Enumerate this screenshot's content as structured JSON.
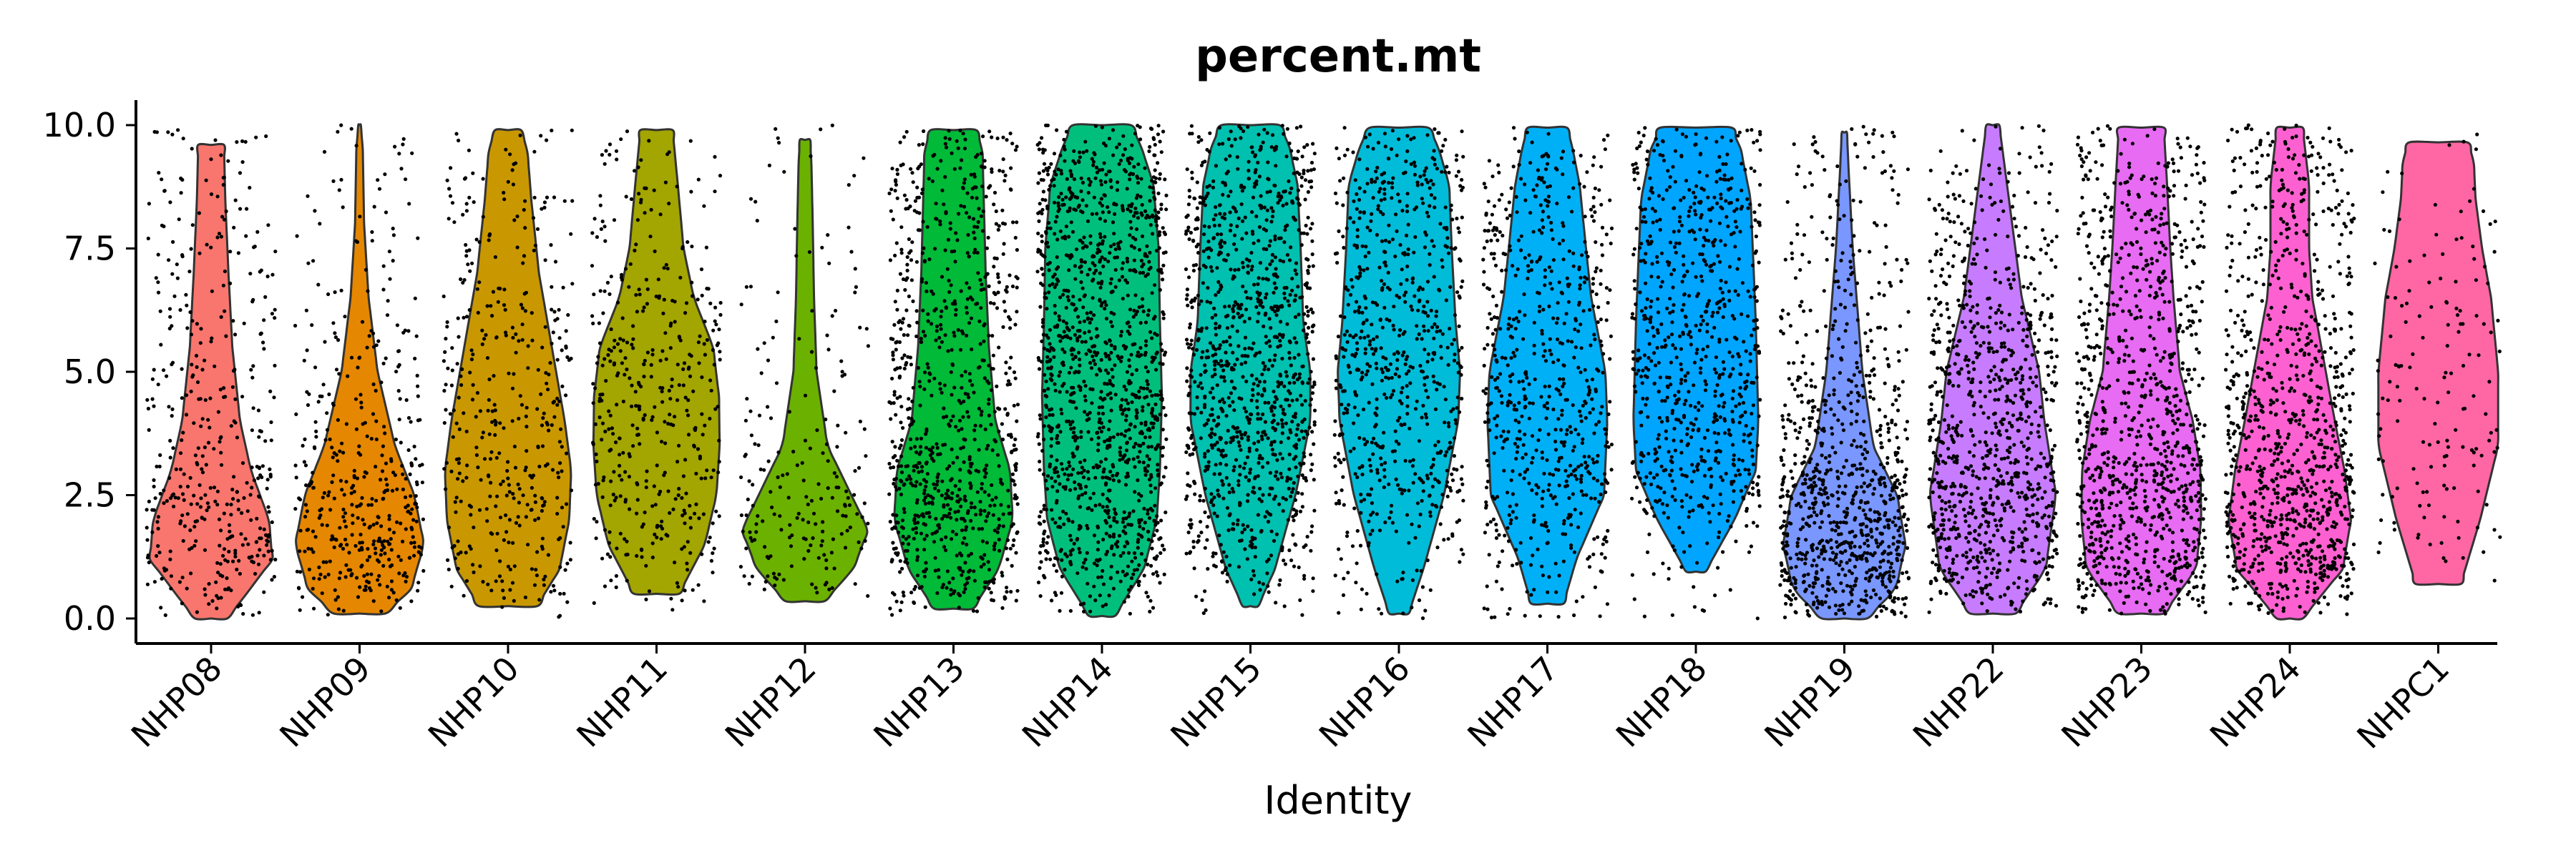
{
  "chart_data": {
    "type": "violin",
    "title": "percent.mt",
    "xlabel": "Identity",
    "ylabel": "",
    "ylim": [
      0,
      10
    ],
    "yticks": [
      "0.0",
      "2.5",
      "5.0",
      "7.5",
      "10.0"
    ],
    "ytick_values": [
      0,
      2.5,
      5,
      7.5,
      10
    ],
    "jitter_points": true,
    "grid": false,
    "legend": "none",
    "categories": [
      "NHP08",
      "NHP09",
      "NHP10",
      "NHP11",
      "NHP12",
      "NHP13",
      "NHP14",
      "NHP15",
      "NHP16",
      "NHP17",
      "NHP18",
      "NHP19",
      "NHP22",
      "NHP23",
      "NHP24",
      "NHPC1"
    ],
    "series": [
      {
        "category": "NHP08",
        "color": "#F8766D",
        "min": 0.0,
        "max": 9.6,
        "n_points": 420,
        "density": [
          [
            0.0,
            0.25
          ],
          [
            0.5,
            0.55
          ],
          [
            1.2,
            0.95
          ],
          [
            2.0,
            0.9
          ],
          [
            3.0,
            0.62
          ],
          [
            4.0,
            0.45
          ],
          [
            5.5,
            0.33
          ],
          [
            7.0,
            0.27
          ],
          [
            8.5,
            0.22
          ],
          [
            9.6,
            0.2
          ]
        ]
      },
      {
        "category": "NHP09",
        "color": "#E58700",
        "min": 0.1,
        "max": 10.0,
        "n_points": 430,
        "density": [
          [
            0.1,
            0.4
          ],
          [
            0.6,
            0.8
          ],
          [
            1.5,
            1.0
          ],
          [
            2.5,
            0.85
          ],
          [
            3.5,
            0.55
          ],
          [
            5.0,
            0.28
          ],
          [
            6.5,
            0.14
          ],
          [
            8.0,
            0.07
          ],
          [
            9.5,
            0.05
          ],
          [
            10.0,
            0.02
          ]
        ]
      },
      {
        "category": "NHP10",
        "color": "#C99800",
        "min": 0.25,
        "max": 9.9,
        "n_points": 400,
        "density": [
          [
            0.25,
            0.45
          ],
          [
            1.0,
            0.8
          ],
          [
            2.0,
            0.95
          ],
          [
            3.0,
            0.98
          ],
          [
            4.0,
            0.88
          ],
          [
            5.5,
            0.68
          ],
          [
            7.0,
            0.48
          ],
          [
            8.5,
            0.36
          ],
          [
            9.5,
            0.3
          ],
          [
            9.9,
            0.2
          ]
        ]
      },
      {
        "category": "NHP11",
        "color": "#A3A500",
        "min": 0.5,
        "max": 9.9,
        "n_points": 420,
        "density": [
          [
            0.5,
            0.35
          ],
          [
            1.5,
            0.75
          ],
          [
            2.5,
            0.93
          ],
          [
            3.5,
            0.98
          ],
          [
            4.5,
            0.97
          ],
          [
            5.5,
            0.88
          ],
          [
            6.5,
            0.58
          ],
          [
            7.5,
            0.42
          ],
          [
            8.8,
            0.33
          ],
          [
            9.9,
            0.25
          ]
        ]
      },
      {
        "category": "NHP12",
        "color": "#6BB100",
        "min": 0.35,
        "max": 9.7,
        "n_points": 200,
        "density": [
          [
            0.35,
            0.3
          ],
          [
            1.0,
            0.75
          ],
          [
            1.8,
            0.98
          ],
          [
            2.5,
            0.72
          ],
          [
            3.5,
            0.35
          ],
          [
            5.0,
            0.18
          ],
          [
            6.5,
            0.14
          ],
          [
            8.0,
            0.12
          ],
          [
            9.2,
            0.1
          ],
          [
            9.7,
            0.08
          ]
        ]
      },
      {
        "category": "NHP13",
        "color": "#00BA38",
        "min": 0.2,
        "max": 9.9,
        "n_points": 900,
        "density": [
          [
            0.2,
            0.3
          ],
          [
            1.0,
            0.7
          ],
          [
            2.0,
            0.92
          ],
          [
            3.0,
            0.88
          ],
          [
            4.0,
            0.65
          ],
          [
            5.5,
            0.55
          ],
          [
            7.0,
            0.5
          ],
          [
            8.5,
            0.47
          ],
          [
            9.5,
            0.45
          ],
          [
            9.9,
            0.35
          ]
        ]
      },
      {
        "category": "NHP14",
        "color": "#00BF7D",
        "min": 0.05,
        "max": 10.0,
        "n_points": 1300,
        "density": [
          [
            0.05,
            0.2
          ],
          [
            1.0,
            0.65
          ],
          [
            2.0,
            0.85
          ],
          [
            3.0,
            0.9
          ],
          [
            4.5,
            0.93
          ],
          [
            6.0,
            0.9
          ],
          [
            7.5,
            0.88
          ],
          [
            8.8,
            0.8
          ],
          [
            9.6,
            0.6
          ],
          [
            10.0,
            0.45
          ]
        ]
      },
      {
        "category": "NHP15",
        "color": "#00C0AF",
        "min": 0.25,
        "max": 10.0,
        "n_points": 1100,
        "density": [
          [
            0.25,
            0.12
          ],
          [
            1.0,
            0.38
          ],
          [
            2.5,
            0.7
          ],
          [
            4.0,
            0.93
          ],
          [
            5.0,
            0.93
          ],
          [
            6.0,
            0.82
          ],
          [
            7.5,
            0.78
          ],
          [
            8.8,
            0.73
          ],
          [
            9.6,
            0.6
          ],
          [
            10.0,
            0.45
          ]
        ]
      },
      {
        "category": "NHP16",
        "color": "#00BCD8",
        "min": 0.1,
        "max": 9.95,
        "n_points": 700,
        "density": [
          [
            0.1,
            0.15
          ],
          [
            1.0,
            0.38
          ],
          [
            2.5,
            0.7
          ],
          [
            4.0,
            0.92
          ],
          [
            5.0,
            0.95
          ],
          [
            6.0,
            0.88
          ],
          [
            7.5,
            0.82
          ],
          [
            8.8,
            0.78
          ],
          [
            9.6,
            0.6
          ],
          [
            9.95,
            0.45
          ]
        ]
      },
      {
        "category": "NHP17",
        "color": "#00B0F6",
        "min": 0.3,
        "max": 9.95,
        "n_points": 650,
        "density": [
          [
            0.3,
            0.25
          ],
          [
            1.2,
            0.45
          ],
          [
            2.5,
            0.88
          ],
          [
            4.0,
            0.93
          ],
          [
            5.0,
            0.9
          ],
          [
            6.5,
            0.68
          ],
          [
            7.5,
            0.6
          ],
          [
            8.8,
            0.5
          ],
          [
            9.6,
            0.38
          ],
          [
            9.95,
            0.3
          ]
        ]
      },
      {
        "category": "NHP18",
        "color": "#00A5FF",
        "min": 0.95,
        "max": 9.95,
        "n_points": 750,
        "density": [
          [
            0.95,
            0.15
          ],
          [
            2.0,
            0.6
          ],
          [
            3.0,
            0.93
          ],
          [
            4.0,
            0.97
          ],
          [
            5.0,
            0.95
          ],
          [
            6.0,
            0.93
          ],
          [
            7.0,
            0.9
          ],
          [
            8.5,
            0.85
          ],
          [
            9.5,
            0.7
          ],
          [
            9.95,
            0.55
          ]
        ]
      },
      {
        "category": "NHP19",
        "color": "#7997FF",
        "min": 0.0,
        "max": 9.85,
        "n_points": 900,
        "density": [
          [
            0.0,
            0.35
          ],
          [
            0.6,
            0.8
          ],
          [
            1.5,
            0.95
          ],
          [
            2.5,
            0.82
          ],
          [
            3.5,
            0.45
          ],
          [
            5.0,
            0.28
          ],
          [
            6.0,
            0.22
          ],
          [
            7.5,
            0.13
          ],
          [
            9.0,
            0.07
          ],
          [
            9.85,
            0.04
          ]
        ]
      },
      {
        "category": "NHP22",
        "color": "#C77CFF",
        "min": 0.1,
        "max": 10.0,
        "n_points": 950,
        "density": [
          [
            0.1,
            0.35
          ],
          [
            1.0,
            0.82
          ],
          [
            2.5,
            0.98
          ],
          [
            4.0,
            0.8
          ],
          [
            5.0,
            0.72
          ],
          [
            6.5,
            0.45
          ],
          [
            7.5,
            0.35
          ],
          [
            8.5,
            0.25
          ],
          [
            9.5,
            0.15
          ],
          [
            10.0,
            0.1
          ]
        ]
      },
      {
        "category": "NHP23",
        "color": "#E76BF3",
        "min": 0.1,
        "max": 9.95,
        "n_points": 1000,
        "density": [
          [
            0.1,
            0.35
          ],
          [
            1.0,
            0.85
          ],
          [
            2.0,
            0.93
          ],
          [
            3.0,
            0.92
          ],
          [
            4.0,
            0.8
          ],
          [
            5.0,
            0.6
          ],
          [
            6.5,
            0.5
          ],
          [
            7.5,
            0.45
          ],
          [
            8.8,
            0.4
          ],
          [
            9.95,
            0.35
          ]
        ]
      },
      {
        "category": "NHP24",
        "color": "#FD61D1",
        "min": 0.0,
        "max": 9.95,
        "n_points": 1000,
        "density": [
          [
            0.0,
            0.2
          ],
          [
            1.0,
            0.82
          ],
          [
            2.0,
            0.95
          ],
          [
            3.0,
            0.85
          ],
          [
            4.0,
            0.7
          ],
          [
            5.0,
            0.56
          ],
          [
            6.5,
            0.35
          ],
          [
            7.5,
            0.3
          ],
          [
            8.8,
            0.3
          ],
          [
            9.95,
            0.2
          ]
        ]
      },
      {
        "category": "NHPC1",
        "color": "#FF67A4",
        "min": 0.7,
        "max": 9.65,
        "n_points": 150,
        "density": [
          [
            0.7,
            0.35
          ],
          [
            2.0,
            0.65
          ],
          [
            3.5,
            0.93
          ],
          [
            5.0,
            0.93
          ],
          [
            6.5,
            0.82
          ],
          [
            7.5,
            0.68
          ],
          [
            8.5,
            0.58
          ],
          [
            9.3,
            0.55
          ],
          [
            9.65,
            0.45
          ]
        ]
      }
    ]
  }
}
